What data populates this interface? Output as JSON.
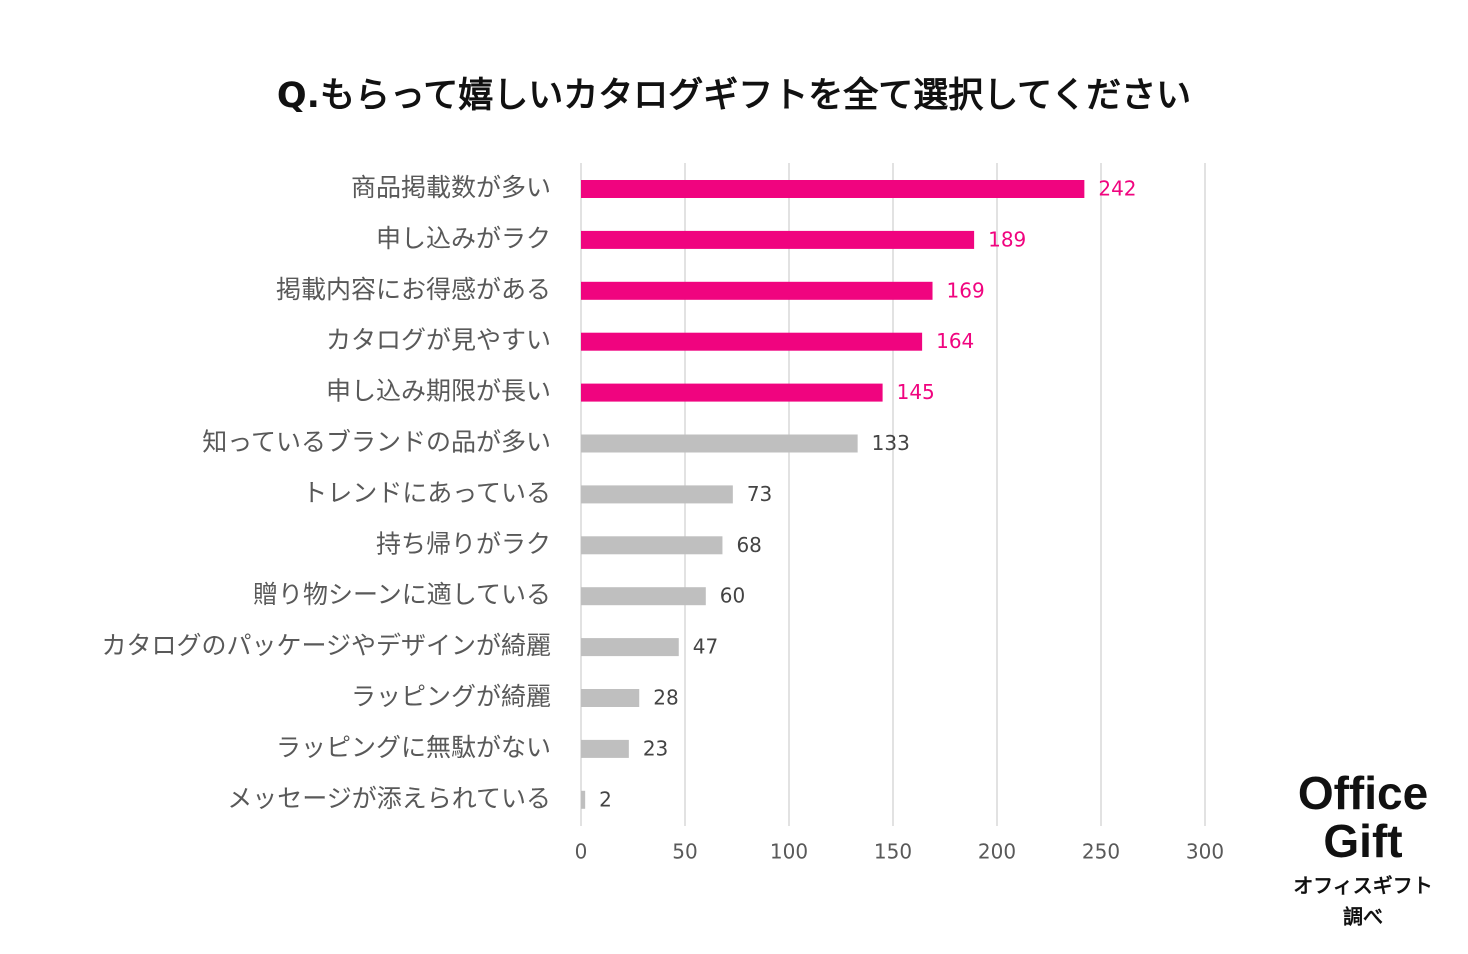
{
  "chart_data": {
    "type": "hbar",
    "title": "Q.もらって嬉しいカタログギフトを全て選択してください",
    "categories": [
      "商品掲載数が多い",
      "申し込みがラク",
      "掲載内容にお得感がある",
      "カタログが見やすい",
      "申し込み期限が長い",
      "知っているブランドの品が多い",
      "トレンドにあっている",
      "持ち帰りがラク",
      "贈り物シーンに適している",
      "カタログのパッケージやデザインが綺麗",
      "ラッピングが綺麗",
      "ラッピングに無駄がない",
      "メッセージが添えられている"
    ],
    "values": [
      242,
      189,
      169,
      164,
      145,
      133,
      73,
      68,
      60,
      47,
      28,
      23,
      2
    ],
    "colors": [
      "#f0047f",
      "#f0047f",
      "#f0047f",
      "#f0047f",
      "#f0047f",
      "#bfbfbf",
      "#bfbfbf",
      "#bfbfbf",
      "#bfbfbf",
      "#bfbfbf",
      "#bfbfbf",
      "#bfbfbf",
      "#bfbfbf"
    ],
    "label_colors": [
      "#f0047f",
      "#f0047f",
      "#f0047f",
      "#f0047f",
      "#f0047f",
      "#444444",
      "#444444",
      "#444444",
      "#444444",
      "#444444",
      "#444444",
      "#444444",
      "#444444"
    ],
    "xlim": [
      0,
      300
    ],
    "xticks": [
      0,
      50,
      100,
      150,
      200,
      250,
      300
    ],
    "grid": true
  },
  "logo": {
    "lines": [
      "Office",
      "Gift"
    ],
    "caption": [
      "オフィスギフト",
      "調べ"
    ]
  }
}
